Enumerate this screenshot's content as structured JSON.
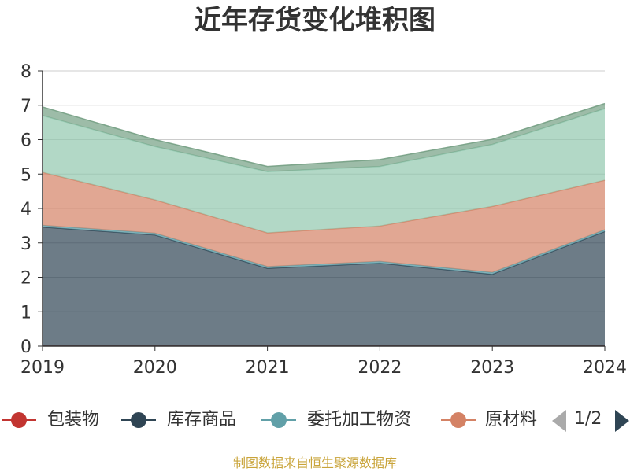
{
  "chart_data": {
    "type": "area",
    "stacked": true,
    "title": "近年存货变化堆积图",
    "xlabel": "",
    "ylabel": "",
    "x": [
      "2019",
      "2020",
      "2021",
      "2022",
      "2023",
      "2024"
    ],
    "ylim": [
      0,
      8
    ],
    "yticks": [
      0,
      1,
      2,
      3,
      4,
      5,
      6,
      7,
      8
    ],
    "grid": true,
    "legend_position": "bottom",
    "series": [
      {
        "name": "包装物",
        "color": "#c23531",
        "values": [
          0.01,
          0.01,
          0.01,
          0.01,
          0.01,
          0.01
        ]
      },
      {
        "name": "库存商品",
        "color": "#2f4554",
        "values": [
          3.45,
          3.22,
          2.25,
          2.4,
          2.08,
          3.32
        ]
      },
      {
        "name": "委托加工物资",
        "color": "#61a0a8",
        "values": [
          0.05,
          0.05,
          0.05,
          0.05,
          0.05,
          0.05
        ]
      },
      {
        "name": "原材料",
        "color": "#d48265",
        "values": [
          1.54,
          0.97,
          0.98,
          1.03,
          1.92,
          1.44
        ]
      },
      {
        "name": "",
        "color": "#91c7ae",
        "values": [
          1.65,
          1.55,
          1.78,
          1.73,
          1.8,
          2.08
        ]
      },
      {
        "name": "",
        "color": "#749f83",
        "values": [
          0.25,
          0.2,
          0.15,
          0.2,
          0.15,
          0.15
        ]
      }
    ]
  },
  "legend": {
    "items": [
      "包装物",
      "库存商品",
      "委托加工物资",
      "原材料"
    ],
    "colors": [
      "#c23531",
      "#2f4554",
      "#61a0a8",
      "#d48265"
    ],
    "page": "1/2"
  },
  "footer": {
    "source": "制图数据来自恒生聚源数据库"
  }
}
